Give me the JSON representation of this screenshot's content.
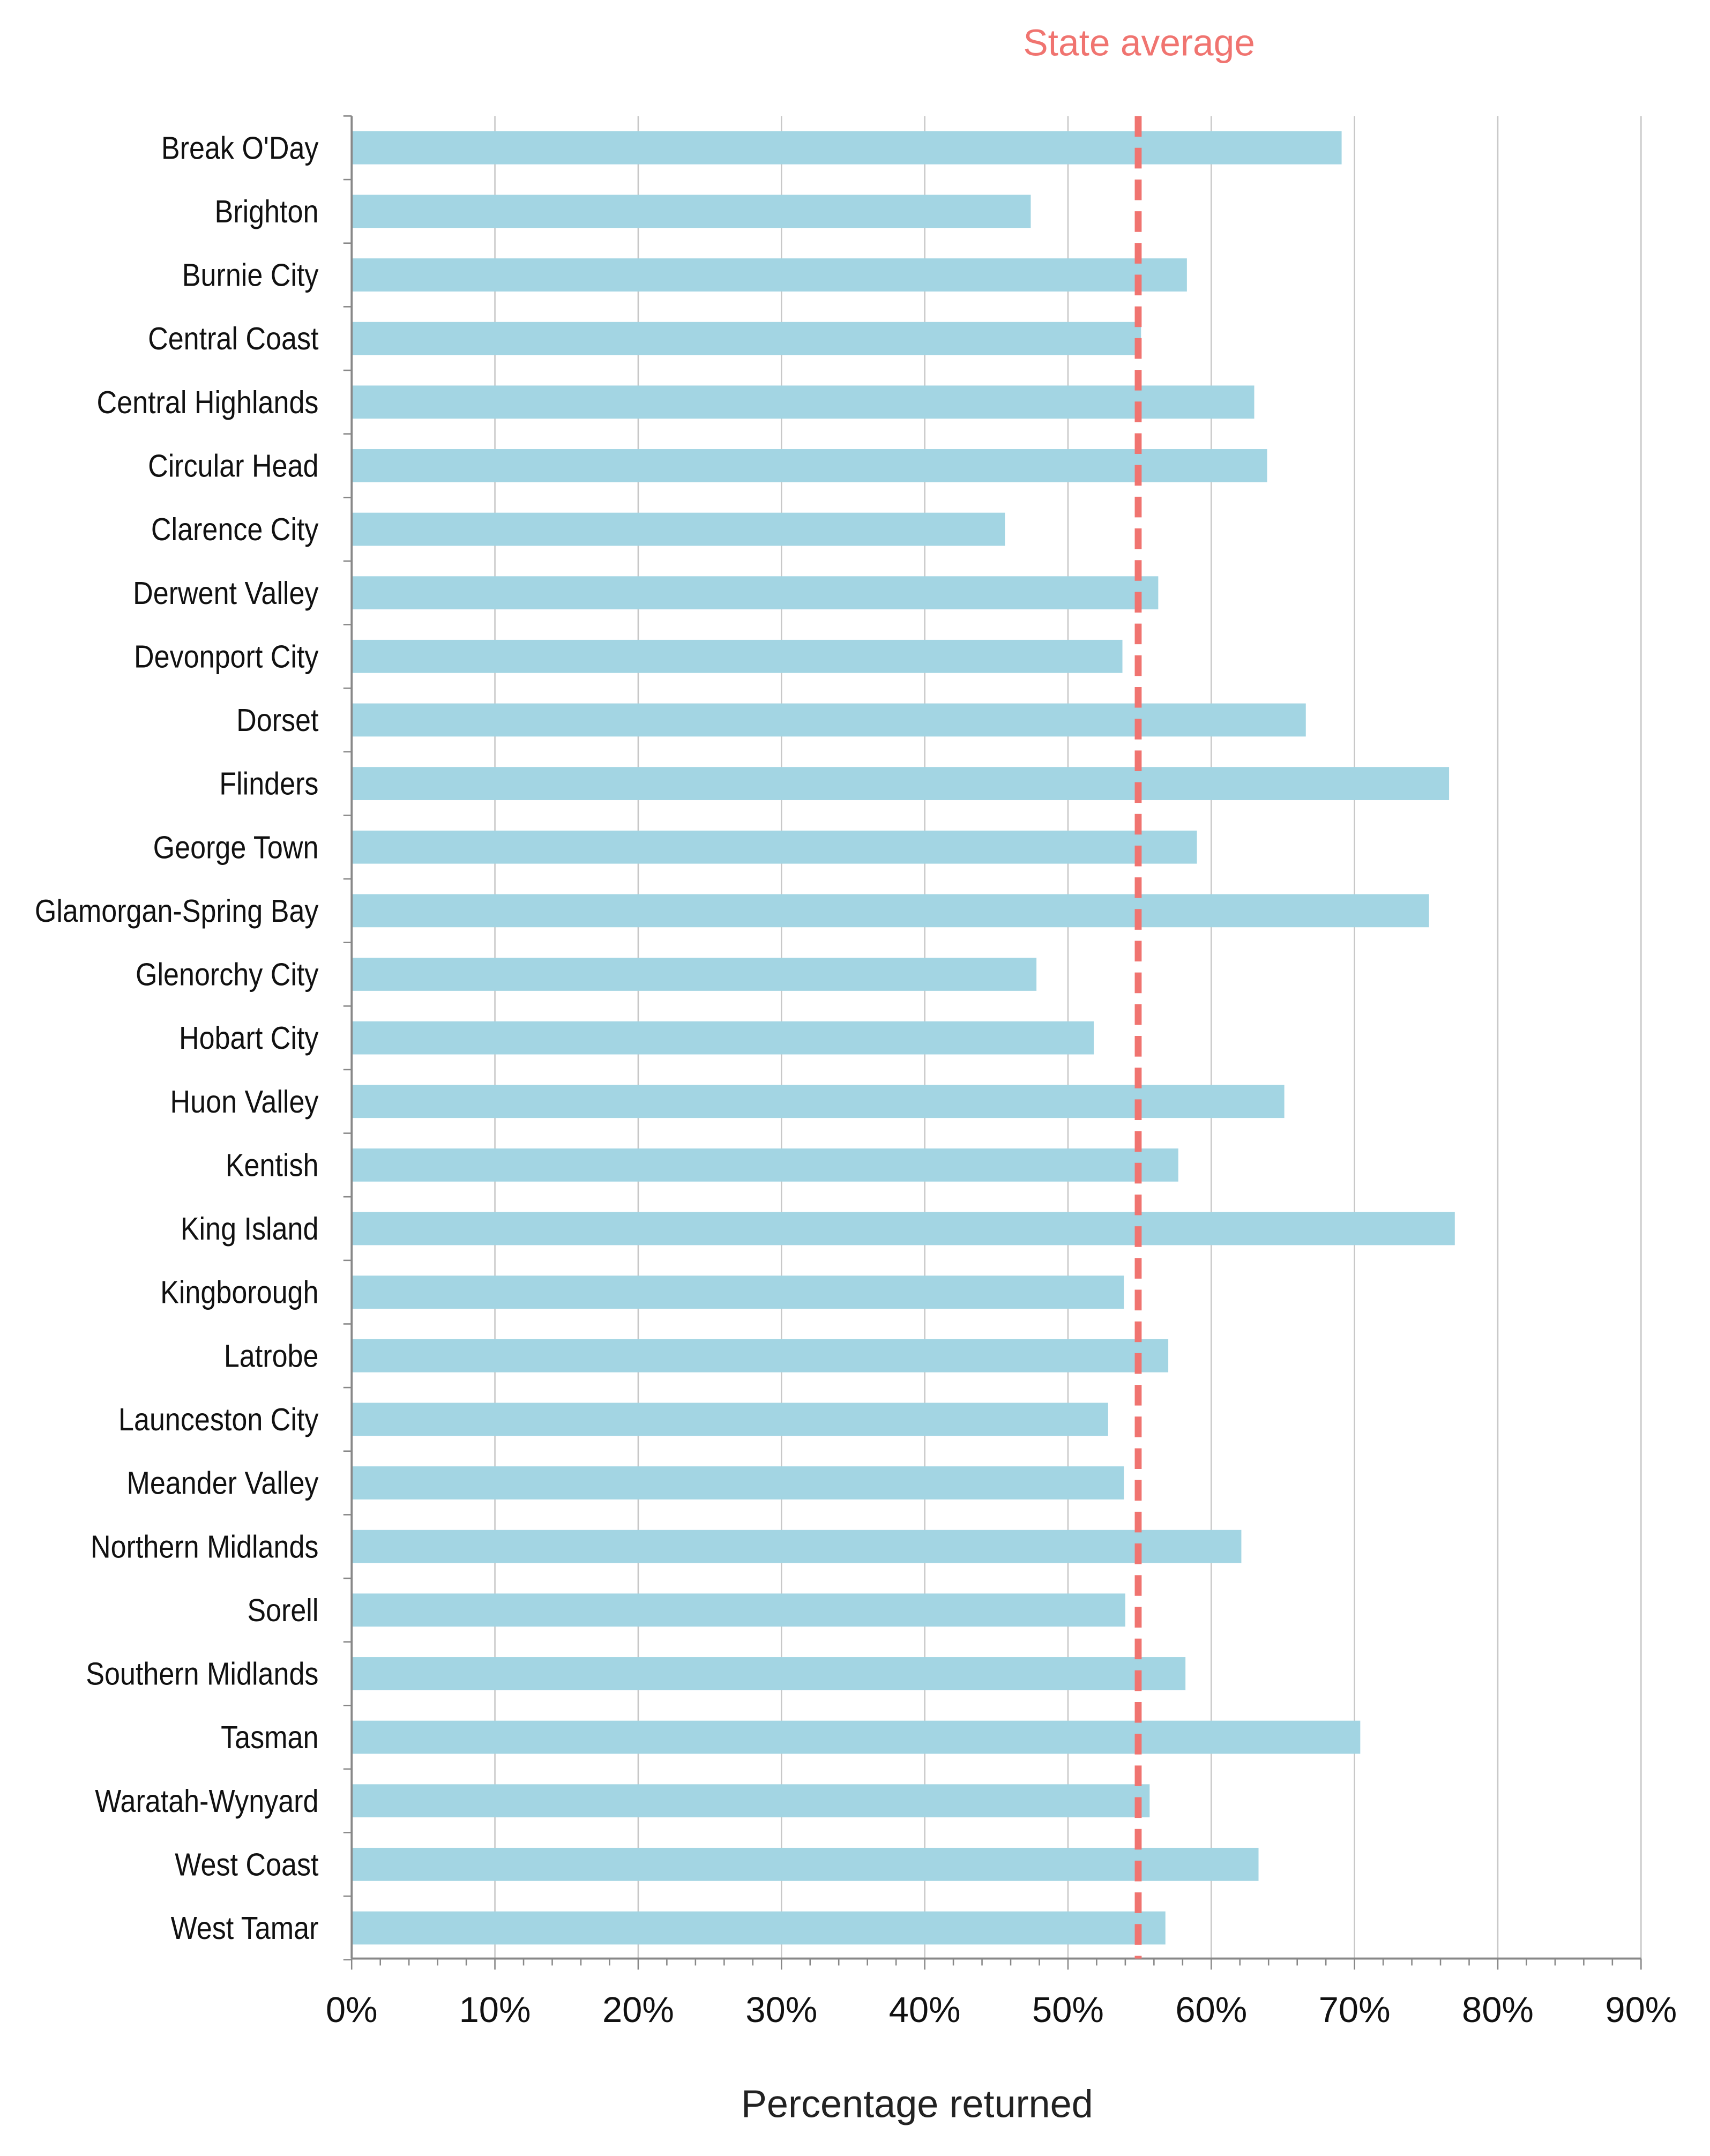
{
  "chart_data": {
    "type": "bar",
    "orientation": "horizontal",
    "title": "",
    "xlabel": "Percentage returned",
    "ylabel": "",
    "xlim": [
      0,
      90
    ],
    "x_ticks": [
      "0%",
      "10%",
      "20%",
      "30%",
      "40%",
      "50%",
      "60%",
      "70%",
      "80%",
      "90%"
    ],
    "grid": "vertical",
    "categories": [
      "Break O'Day",
      "Brighton",
      "Burnie City",
      "Central Coast",
      "Central Highlands",
      "Circular Head",
      "Clarence City",
      "Derwent Valley",
      "Devonport City",
      "Dorset",
      "Flinders",
      "George Town",
      "Glamorgan-Spring Bay",
      "Glenorchy City",
      "Hobart City",
      "Huon Valley",
      "Kentish",
      "King Island",
      "Kingborough",
      "Latrobe",
      "Launceston City",
      "Meander Valley",
      "Northern Midlands",
      "Sorell",
      "Southern Midlands",
      "Tasman",
      "Waratah-Wynyard",
      "West Coast",
      "West Tamar"
    ],
    "values": [
      69.1,
      47.4,
      58.3,
      55.1,
      63.0,
      63.9,
      45.6,
      56.3,
      53.8,
      66.6,
      76.6,
      59.0,
      75.2,
      47.8,
      51.8,
      65.1,
      57.7,
      77.0,
      53.9,
      57.0,
      52.8,
      53.9,
      62.1,
      54.0,
      58.2,
      70.4,
      55.7,
      63.3,
      56.8
    ],
    "reference_line": {
      "label": "State average",
      "value": 54.9,
      "style": "dashed"
    },
    "colors": {
      "bar": "#a3d5e3",
      "reference": "#f07470",
      "grid": "#c8c8c8",
      "axis": "#888888"
    }
  }
}
